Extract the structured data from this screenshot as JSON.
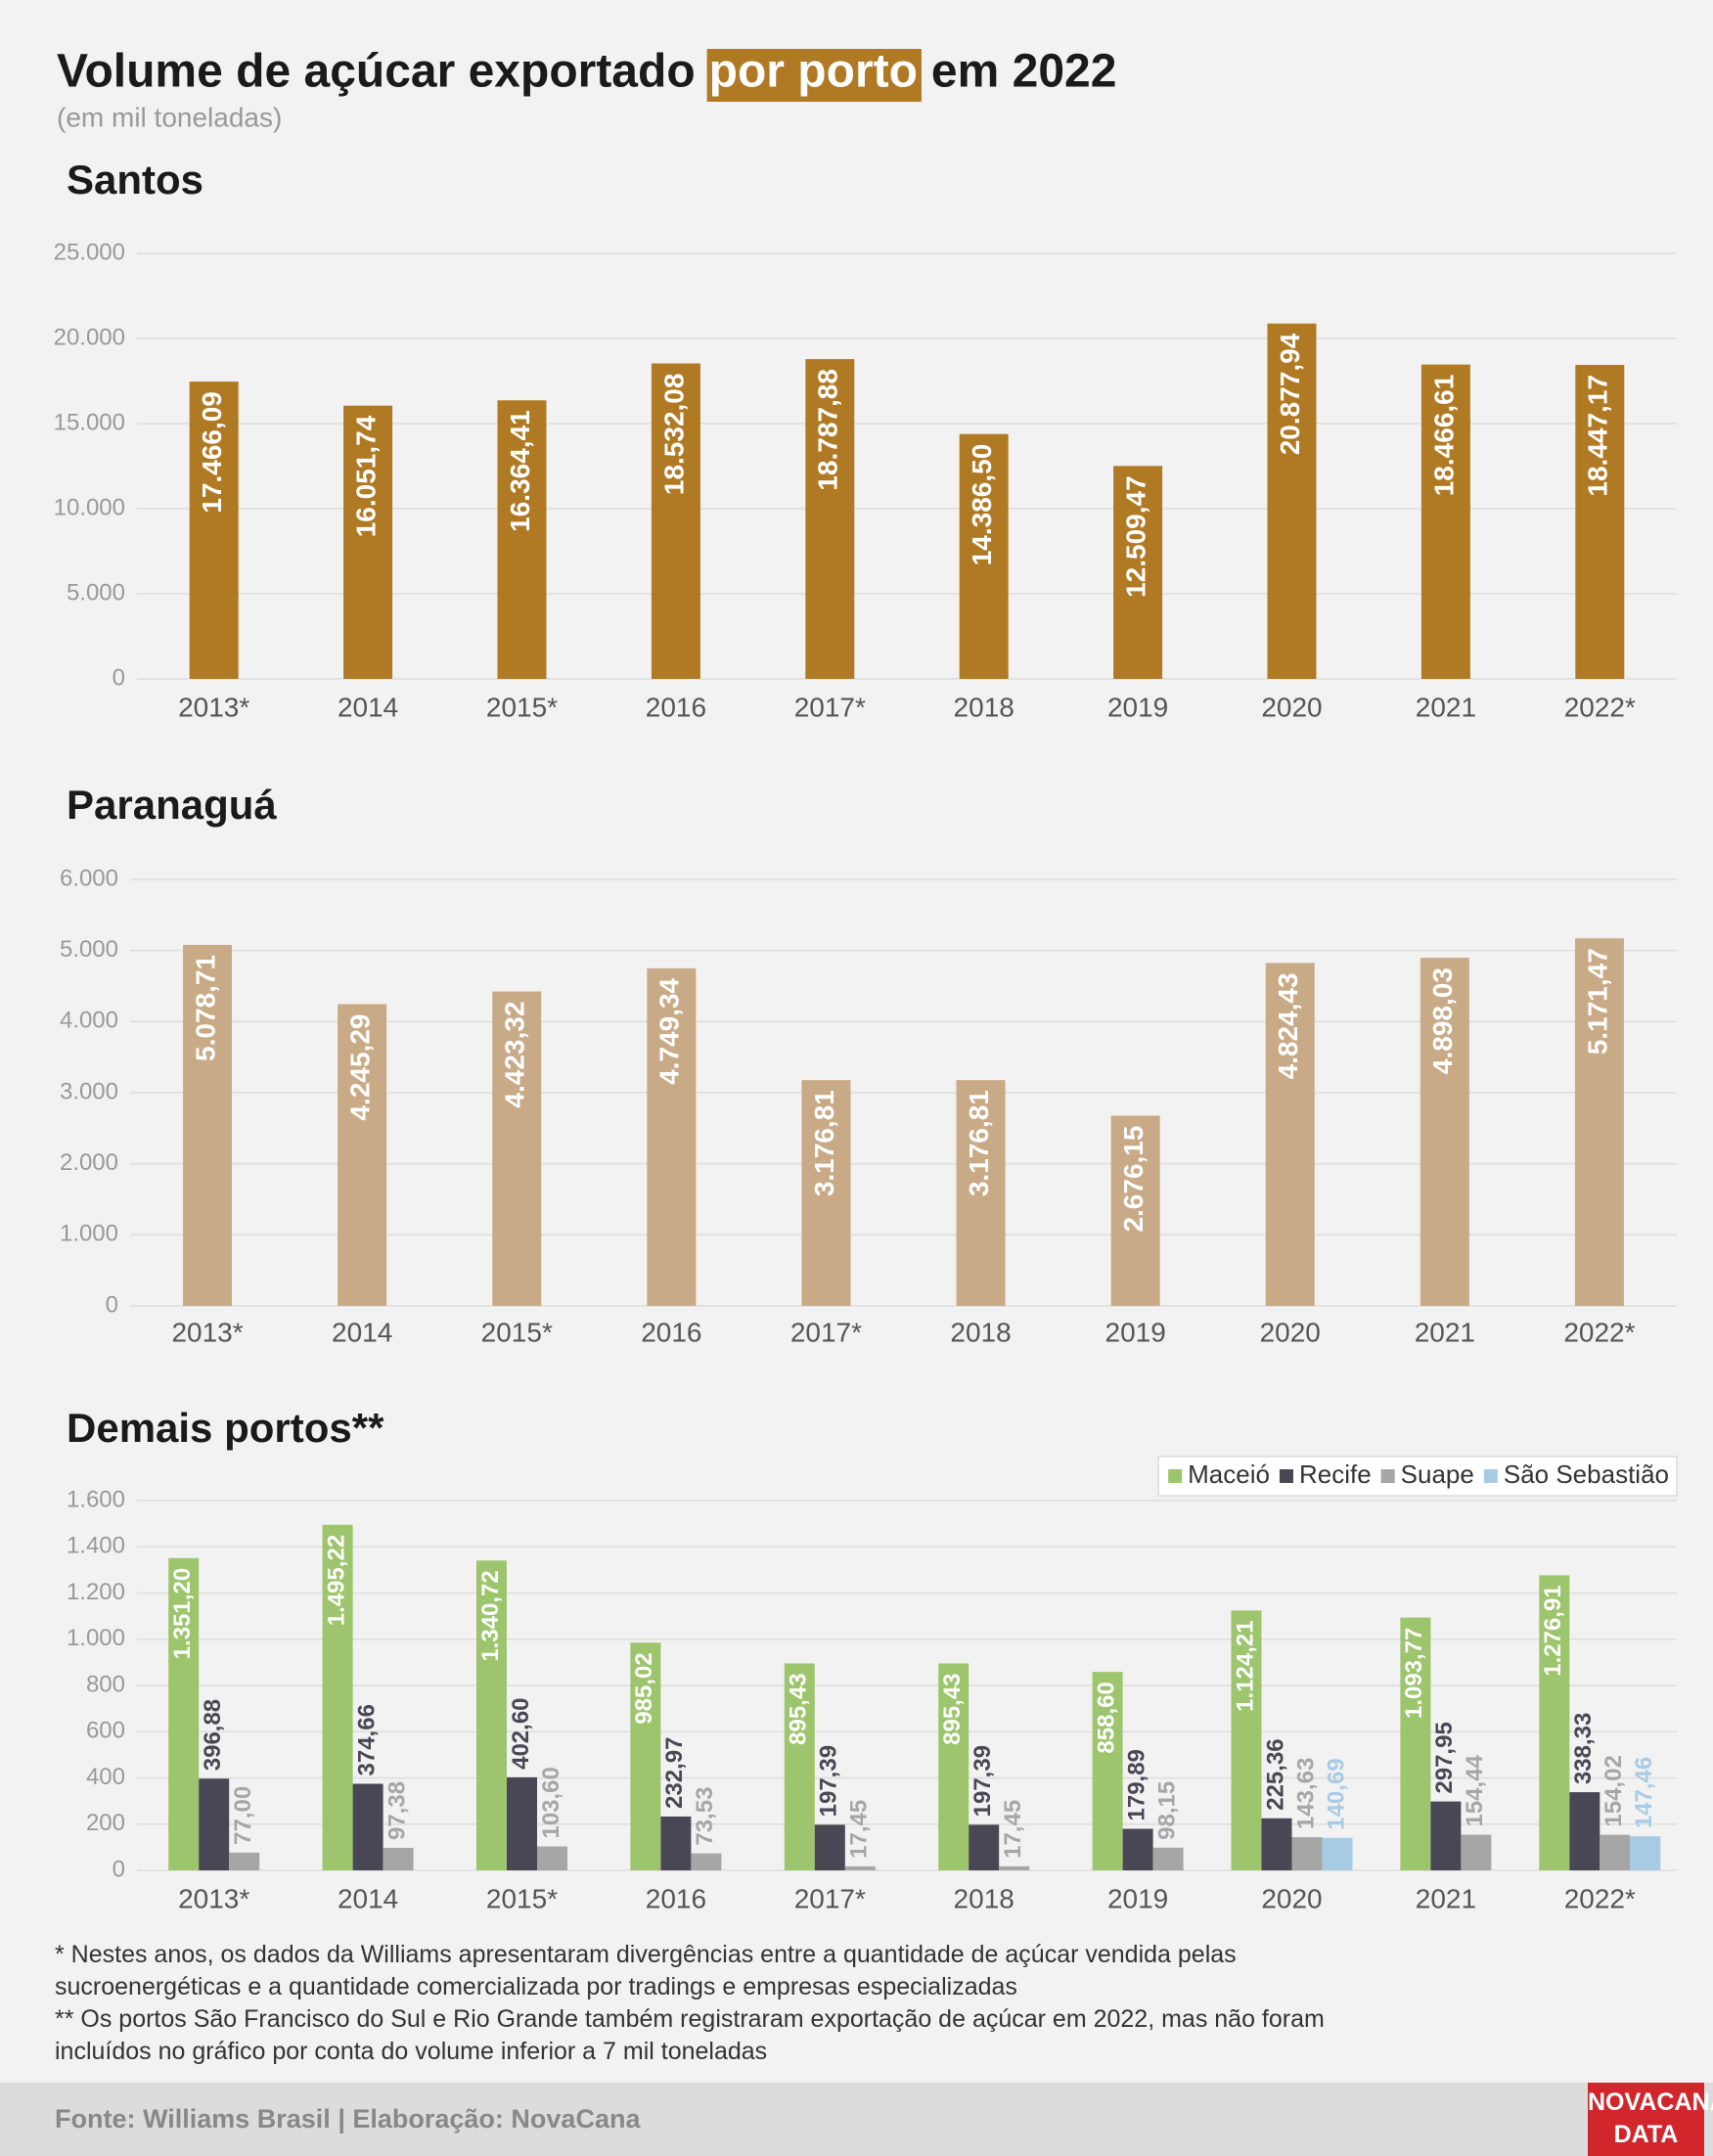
{
  "header": {
    "title_parts": [
      "Volume de açúcar exportado",
      "por porto",
      "em 2022"
    ],
    "subtitle": "(em mil toneladas)"
  },
  "chart_data": [
    {
      "type": "bar",
      "title": "Santos",
      "color": "#b07a24",
      "grid": true,
      "categories": [
        "2013*",
        "2014",
        "2015*",
        "2016",
        "2017*",
        "2018",
        "2019",
        "2020",
        "2021",
        "2022*"
      ],
      "values": [
        17466.09,
        16051.74,
        16364.41,
        18532.08,
        18787.88,
        14386.5,
        12509.47,
        20877.94,
        18466.61,
        18447.17
      ],
      "value_labels": [
        "17.466,09",
        "16.051,74",
        "16.364,41",
        "18.532,08",
        "18.787,88",
        "14.386,50",
        "12.509,47",
        "20.877,94",
        "18.466,61",
        "18.447,17"
      ],
      "ylim": [
        0,
        25000
      ],
      "yticks": [
        0,
        {
          "value": 5000,
          "label": "5.000"
        },
        {
          "value": 10000,
          "label": "10.000"
        },
        {
          "value": 15000,
          "label": "15.000"
        },
        {
          "value": 20000,
          "label": "20.000"
        },
        {
          "value": 25000,
          "label": "25.000"
        }
      ]
    },
    {
      "type": "bar",
      "title": "Paranaguá",
      "color": "#c9aa86",
      "grid": true,
      "categories": [
        "2013*",
        "2014",
        "2015*",
        "2016",
        "2017*",
        "2018",
        "2019",
        "2020",
        "2021",
        "2022*"
      ],
      "values": [
        5078.71,
        4245.29,
        4423.32,
        4749.34,
        3176.81,
        3176.81,
        2676.15,
        4824.43,
        4898.03,
        5171.47
      ],
      "value_labels": [
        "5.078,71",
        "4.245,29",
        "4.423,32",
        "4.749,34",
        "3.176,81",
        "3.176,81",
        "2.676,15",
        "4.824,43",
        "4.898,03",
        "5.171,47"
      ],
      "ylim": [
        0,
        6000
      ],
      "yticks": [
        0,
        {
          "value": 1000,
          "label": "1.000"
        },
        {
          "value": 2000,
          "label": "2.000"
        },
        {
          "value": 3000,
          "label": "3.000"
        },
        {
          "value": 4000,
          "label": "4.000"
        },
        {
          "value": 5000,
          "label": "5.000"
        },
        {
          "value": 6000,
          "label": "6.000"
        }
      ]
    },
    {
      "type": "bar",
      "title": "Demais portos**",
      "grid": true,
      "legend": "upper right",
      "categories": [
        "2013*",
        "2014",
        "2015*",
        "2016",
        "2017*",
        "2018",
        "2019",
        "2020",
        "2021",
        "2022*"
      ],
      "series": [
        {
          "name": "Maceió",
          "color": "#9dc56d",
          "values": [
            1351.2,
            1495.22,
            1340.72,
            985.02,
            895.43,
            895.43,
            858.6,
            1124.21,
            1093.77,
            1276.91
          ],
          "value_labels": [
            "1.351,20",
            "1.495,22",
            "1.340,72",
            "985,02",
            "895,43",
            "895,43",
            "858,60",
            "1.124,21",
            "1.093,77",
            "1.276,91"
          ]
        },
        {
          "name": "Recife",
          "color": "#4a4754",
          "values": [
            396.88,
            374.66,
            402.6,
            232.97,
            197.39,
            197.39,
            179.89,
            225.36,
            297.95,
            338.33
          ],
          "value_labels": [
            "396,88",
            "374,66",
            "402,60",
            "232,97",
            "197,39",
            "197,39",
            "179,89",
            "225,36",
            "297,95",
            "338,33"
          ]
        },
        {
          "name": "Suape",
          "color": "#a6a6a6",
          "values": [
            77.0,
            97.38,
            103.6,
            73.53,
            17.45,
            17.45,
            98.15,
            143.63,
            154.44,
            154.02
          ],
          "value_labels": [
            "77,00",
            "97,38",
            "103,60",
            "73,53",
            "17,45",
            "17,45",
            "98,15",
            "143,63",
            "154,44",
            "154,02"
          ]
        },
        {
          "name": "São Sebastião",
          "color": "#a8cbe4",
          "values": [
            null,
            null,
            null,
            null,
            null,
            null,
            null,
            140.69,
            null,
            147.46
          ],
          "value_labels": [
            null,
            null,
            null,
            null,
            null,
            null,
            null,
            "140,69",
            null,
            "147,46"
          ]
        }
      ],
      "ylim": [
        0,
        1600
      ],
      "yticks": [
        0,
        200,
        400,
        600,
        800,
        {
          "value": 1000,
          "label": "1.000"
        },
        {
          "value": 1200,
          "label": "1.200"
        },
        {
          "value": 1400,
          "label": "1.400"
        },
        {
          "value": 1600,
          "label": "1.600"
        }
      ]
    }
  ],
  "footnotes": [
    "* Nestes anos, os dados da Williams apresentaram divergências entre a quantidade de açúcar vendida pelas sucroenergéticas e a quantidade comercializada por tradings e empresas especializadas",
    "** Os portos São Francisco do Sul e Rio Grande também registraram exportação de açúcar em 2022, mas não foram incluídos no gráfico por conta do volume inferior a 7 mil toneladas"
  ],
  "footer": {
    "source": "Fonte: Williams Brasil | Elaboração: NovaCana",
    "logo": [
      "NOVACANA",
      "DATA"
    ]
  }
}
